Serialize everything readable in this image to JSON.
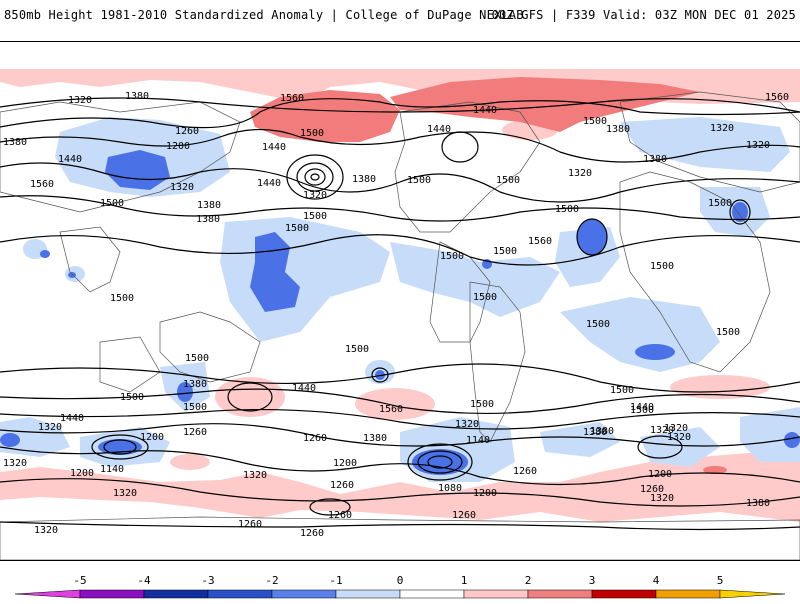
{
  "header": {
    "title_left": "850mb Height 1981-2010 Standardized Anomaly | College of DuPage NEXLAB",
    "title_right": "00Z GFS | F339 Valid: 03Z MON DEC 01 2025"
  },
  "colorbar": {
    "ticks": [
      "-5",
      "-4",
      "-3",
      "-2",
      "-1",
      "0",
      "1",
      "2",
      "3",
      "4",
      "5"
    ],
    "colors": [
      "#e040e0",
      "#8a10c0",
      "#1030a0",
      "#2a50c8",
      "#5a80e8",
      "#c8dcf8",
      "#ffffff",
      "#ffc8c8",
      "#f08080",
      "#e04040",
      "#c00000",
      "#f0a000",
      "#f8d000"
    ]
  },
  "contour_labels": [
    "1320",
    "1380",
    "1380",
    "1260",
    "1200",
    "1440",
    "1560",
    "1560",
    "1320",
    "1320",
    "1380",
    "1500",
    "1440",
    "1440",
    "1500",
    "1500",
    "1440",
    "1440",
    "1380",
    "1320",
    "1500",
    "1320",
    "1380",
    "1500",
    "1380",
    "1320",
    "1560",
    "1380",
    "1500",
    "1500",
    "1500",
    "1500",
    "1500",
    "1500",
    "1500",
    "1500",
    "1500",
    "1500",
    "1560",
    "1500",
    "1500",
    "1500",
    "1500",
    "1380",
    "1500",
    "1500",
    "1440",
    "1500",
    "1560",
    "1500",
    "1440",
    "1320",
    "1320",
    "1440",
    "1380",
    "1200",
    "1260",
    "1320",
    "1140",
    "1200",
    "1260",
    "1200",
    "1380",
    "1320",
    "1140",
    "1320",
    "1260",
    "1080",
    "1200",
    "1260",
    "1260",
    "1260",
    "1320",
    "1380",
    "1260",
    "1200",
    "1320",
    "1260",
    "1320",
    "1380",
    "1320",
    "1260",
    "1320"
  ]
}
